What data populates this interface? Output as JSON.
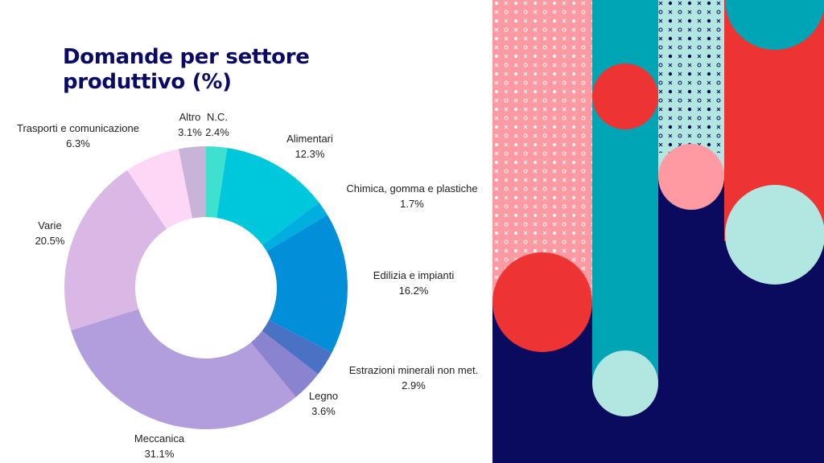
{
  "title": {
    "line1": "Domande per settore",
    "line2": "produttivo (%)"
  },
  "colors": {
    "title": "#0a0a66",
    "navy": "#0a0a5e",
    "teal": "#00a5b5",
    "red": "#ee3333",
    "pink": "#ff9aa2",
    "mint": "#b2e6e0"
  },
  "chart_data": {
    "type": "pie",
    "donut": true,
    "title": "Domande per settore produttivo (%)",
    "slices": [
      {
        "name": "N.C.",
        "value": 2.4,
        "label": "2.4%",
        "color": "#3ee0d0"
      },
      {
        "name": "Alimentari",
        "value": 12.3,
        "label": "12.3%",
        "color": "#00c8dc"
      },
      {
        "name": "Chimica, gomma e plastiche",
        "value": 1.7,
        "label": "1.7%",
        "color": "#00aee0"
      },
      {
        "name": "Edilizia e impianti",
        "value": 16.2,
        "label": "16.2%",
        "color": "#008fd8"
      },
      {
        "name": "Estrazioni minerali non met.",
        "value": 2.9,
        "label": "2.9%",
        "color": "#4a72c4"
      },
      {
        "name": "Legno",
        "value": 3.6,
        "label": "3.6%",
        "color": "#8a84d0"
      },
      {
        "name": "Meccanica",
        "value": 31.1,
        "label": "31.1%",
        "color": "#b29edc"
      },
      {
        "name": "Varie",
        "value": 20.5,
        "label": "20.5%",
        "color": "#dab8e6"
      },
      {
        "name": "Trasporti e comunicazione",
        "value": 6.3,
        "label": "6.3%",
        "color": "#fed6f6"
      },
      {
        "name": "Altro",
        "value": 3.1,
        "label": "3.1%",
        "color": "#c8b4d8"
      }
    ]
  }
}
